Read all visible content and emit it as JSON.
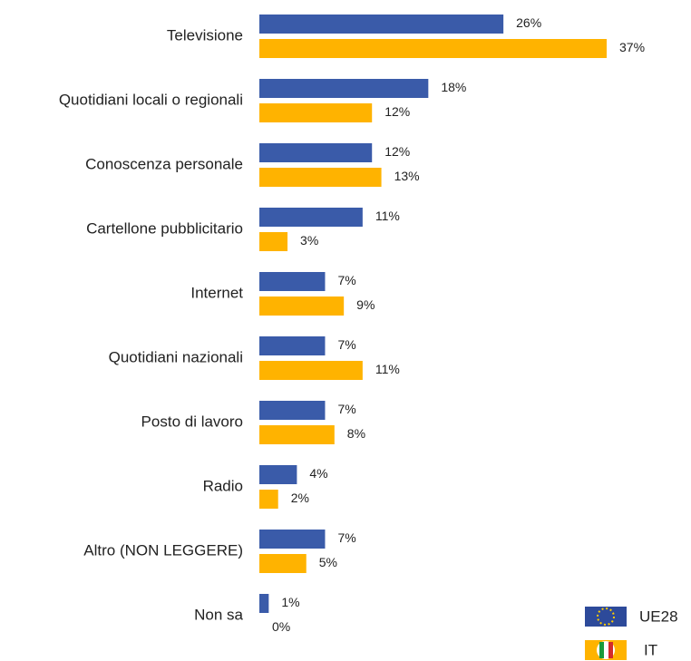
{
  "chart_data": {
    "type": "bar",
    "orientation": "horizontal",
    "categories": [
      "Televisione",
      "Quotidiani locali o regionali",
      "Conoscenza personale",
      "Cartellone pubblicitario",
      "Internet",
      "Quotidiani nazionali",
      "Posto di lavoro",
      "Radio",
      "Altro (NON LEGGERE)",
      "Non sa"
    ],
    "series": [
      {
        "name": "UE28",
        "color": "#3a5ba9",
        "values": [
          26,
          18,
          12,
          11,
          7,
          7,
          7,
          4,
          7,
          1
        ],
        "value_labels": [
          "26%",
          "18%",
          "12%",
          "11%",
          "7%",
          "7%",
          "7%",
          "4%",
          "7%",
          "1%"
        ]
      },
      {
        "name": "IT",
        "color": "#ffb300",
        "values": [
          37,
          12,
          13,
          3,
          9,
          11,
          8,
          2,
          5,
          0
        ],
        "value_labels": [
          "37%",
          "12%",
          "13%",
          "3%",
          "9%",
          "11%",
          "8%",
          "2%",
          "5%",
          "0%"
        ]
      }
    ],
    "legend": "lower right"
  }
}
